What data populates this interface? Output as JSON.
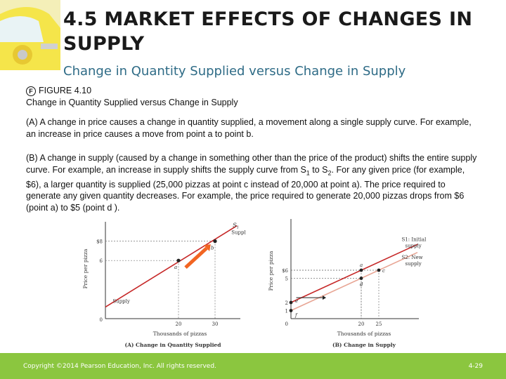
{
  "slide": {
    "title": "4.5 MARKET EFFECTS OF CHANGES IN SUPPLY",
    "subtitle": "Change in Quantity Supplied versus Change in Supply",
    "figure_label": "FIGURE 4.10",
    "figure_caption": "Change in Quantity Supplied versus Change in Supply"
  },
  "text": {
    "p1": "(A) A change in price causes a change in quantity supplied, a movement along a single supply curve. For example, an increase in price causes a move from point a to point b.",
    "p2_part1": "(B) A change in supply (caused by a change in something other than the price of the product) shifts the entire supply curve. For example, an increase in supply shifts the supply curve from S",
    "p2_sub1": "1",
    "p2_part2": " to S",
    "p2_sub2": "2",
    "p2_part3": ". For any given price (for example, $6), a larger quantity is supplied (25,000 pizzas at point c instead of 20,000 at point a). The price required to generate any given quantity decreases. For example, the price required to generate 20,000 pizzas drops from $6 (point a) to $5 (point d )."
  },
  "chart_data": [
    {
      "type": "line",
      "title": "(A) Change in Quantity Supplied",
      "xlabel": "Thousands of pizzas",
      "ylabel": "Price per pizza",
      "x_ticks": [
        "0",
        "20",
        "30"
      ],
      "y_ticks": [
        "$8",
        "6"
      ],
      "series": [
        {
          "name": "Supply",
          "x": [
            0,
            36
          ],
          "y": [
            1.2,
            9.6
          ],
          "color": "#c62828"
        }
      ],
      "curve_label": "S",
      "curve_label_sub": "1",
      "curve_label_extra": "Supply",
      "points": [
        {
          "label": "a",
          "x": 20,
          "y": 6
        },
        {
          "label": "b",
          "x": 30,
          "y": 8
        }
      ],
      "arrow_color": "#f26522"
    },
    {
      "type": "line",
      "title": "(B) Change in Supply",
      "xlabel": "Thousands of pizzas",
      "ylabel": "Price per pizza",
      "x_ticks": [
        "0",
        "20",
        "25"
      ],
      "y_ticks": [
        "$6",
        "5",
        "2",
        "1"
      ],
      "series": [
        {
          "name": "S1: Initial supply",
          "x": [
            0,
            36
          ],
          "y": [
            2,
            9.2
          ],
          "color": "#c62828"
        },
        {
          "name": "S2: New supply",
          "x": [
            0,
            36
          ],
          "y": [
            1,
            8.2
          ],
          "color": "#e8a594"
        }
      ],
      "curve_labels": [
        {
          "text": "S1: Initial supply"
        },
        {
          "text": "S2: New supply"
        }
      ],
      "points": [
        {
          "label": "a",
          "x": 20,
          "y": 6
        },
        {
          "label": "c",
          "x": 25,
          "y": 6
        },
        {
          "label": "d",
          "x": 20,
          "y": 5
        },
        {
          "label": "e",
          "x": 0,
          "y": 2
        },
        {
          "label": "f",
          "x": 0,
          "y": 1
        }
      ]
    }
  ],
  "footer": {
    "copyright": "Copyright ©2014 Pearson Education, Inc. All rights reserved.",
    "page": "4-29"
  }
}
